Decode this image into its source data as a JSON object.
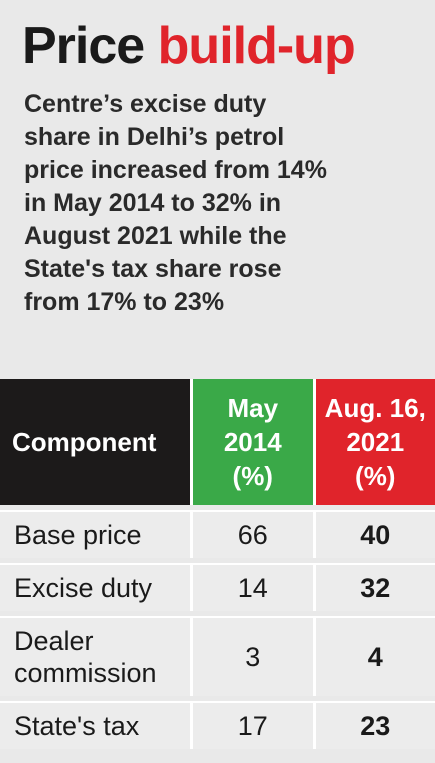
{
  "header": {
    "title_black": "Price",
    "title_red": "build-up",
    "subtitle_lines": [
      "Centre’s excise duty",
      "share in Delhi’s petrol",
      "price increased from 14%",
      "in May 2014 to 32% in",
      "August 2021 while the",
      "State's tax share rose",
      "from 17% to 23%"
    ]
  },
  "table": {
    "columns": [
      [
        "Component"
      ],
      [
        "May",
        "2014",
        "(%)"
      ],
      [
        "Aug. 16,",
        "2021",
        "(%)"
      ]
    ],
    "rows": [
      [
        "Base price",
        66,
        40
      ],
      [
        "Excise duty",
        14,
        32
      ],
      [
        "Dealer commission",
        3,
        4
      ],
      [
        "State's tax",
        17,
        23
      ]
    ]
  }
}
